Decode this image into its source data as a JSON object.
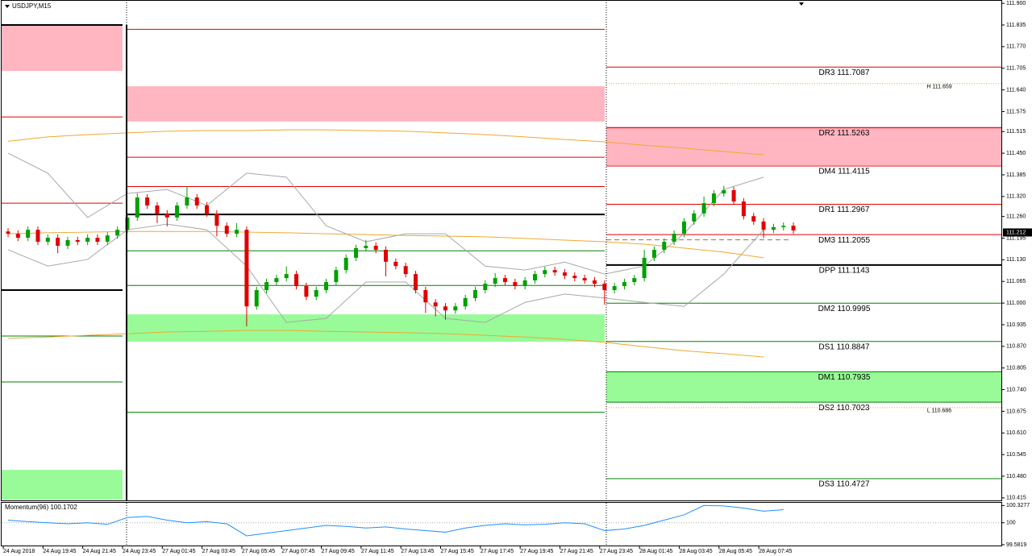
{
  "chart_data": {
    "type": "candlestick",
    "title": "USDJPY,M15",
    "times": [
      "24 Aug 2018",
      "24 Aug 19:45",
      "24 Aug 21:45",
      "24 Aug 23:45",
      "27 Aug 01:45",
      "27 Aug 03:45",
      "27 Aug 05:45",
      "27 Aug 07:45",
      "27 Aug 09:45",
      "27 Aug 11:45",
      "27 Aug 13:45",
      "27 Aug 15:45",
      "27 Aug 17:45",
      "27 Aug 19:45",
      "27 Aug 21:45",
      "27 Aug 23:45",
      "28 Aug 01:45",
      "28 Aug 03:45",
      "28 Aug 05:45",
      "28 Aug 07:45"
    ],
    "up_color": "#00a000",
    "down_color": "#e00000",
    "candles": [
      [
        111.215,
        111.225,
        111.198,
        111.208
      ],
      [
        111.208,
        111.218,
        111.186,
        111.196
      ],
      [
        111.196,
        111.23,
        111.186,
        111.22
      ],
      [
        111.22,
        111.23,
        111.174,
        111.184
      ],
      [
        111.184,
        111.206,
        111.174,
        111.196
      ],
      [
        111.196,
        111.206,
        111.15,
        111.172
      ],
      [
        111.172,
        111.199,
        111.162,
        111.189
      ],
      [
        111.189,
        111.199,
        111.174,
        111.184
      ],
      [
        111.184,
        111.206,
        111.174,
        111.196
      ],
      [
        111.196,
        111.206,
        111.174,
        111.184
      ],
      [
        111.184,
        111.213,
        111.174,
        111.203
      ],
      [
        111.203,
        111.23,
        111.193,
        111.22
      ],
      [
        111.22,
        111.267,
        111.21,
        111.257
      ],
      [
        111.257,
        111.33,
        111.247,
        111.317
      ],
      [
        111.317,
        111.327,
        111.283,
        111.293
      ],
      [
        111.293,
        111.303,
        111.24,
        111.269
      ],
      [
        111.269,
        111.279,
        111.23,
        111.257
      ],
      [
        111.257,
        111.303,
        111.247,
        111.293
      ],
      [
        111.293,
        111.35,
        111.283,
        111.317
      ],
      [
        111.317,
        111.327,
        111.283,
        111.293
      ],
      [
        111.293,
        111.303,
        111.259,
        111.269
      ],
      [
        111.269,
        111.279,
        111.2,
        111.232
      ],
      [
        111.232,
        111.242,
        111.198,
        111.208
      ],
      [
        111.208,
        111.24,
        111.198,
        111.22
      ],
      [
        111.22,
        111.23,
        110.93,
        110.99
      ],
      [
        110.99,
        111.049,
        110.98,
        111.039
      ],
      [
        111.039,
        111.073,
        111.029,
        111.063
      ],
      [
        111.063,
        111.085,
        111.053,
        111.075
      ],
      [
        111.075,
        111.11,
        111.065,
        111.087
      ],
      [
        111.087,
        111.097,
        111.041,
        111.051
      ],
      [
        111.051,
        111.061,
        111.009,
        111.019
      ],
      [
        111.019,
        111.049,
        111.009,
        111.039
      ],
      [
        111.039,
        111.073,
        111.029,
        111.063
      ],
      [
        111.063,
        111.109,
        111.053,
        111.099
      ],
      [
        111.099,
        111.146,
        111.089,
        111.136
      ],
      [
        111.136,
        111.175,
        111.126,
        111.165
      ],
      [
        111.165,
        111.19,
        111.155,
        111.172
      ],
      [
        111.172,
        111.182,
        111.15,
        111.16
      ],
      [
        111.16,
        111.17,
        111.08,
        111.124
      ],
      [
        111.124,
        111.134,
        111.101,
        111.111
      ],
      [
        111.111,
        111.121,
        111.077,
        111.087
      ],
      [
        111.087,
        111.097,
        111.029,
        111.039
      ],
      [
        111.039,
        111.049,
        110.97,
        111.002
      ],
      [
        111.002,
        111.012,
        110.96,
        110.99
      ],
      [
        110.99,
        111.0,
        110.95,
        110.978
      ],
      [
        110.978,
        111.0,
        110.968,
        110.99
      ],
      [
        110.99,
        111.025,
        110.98,
        111.015
      ],
      [
        111.015,
        111.049,
        111.005,
        111.039
      ],
      [
        111.039,
        111.068,
        111.029,
        111.058
      ],
      [
        111.058,
        111.09,
        111.048,
        111.075
      ],
      [
        111.075,
        111.085,
        111.053,
        111.063
      ],
      [
        111.063,
        111.073,
        111.041,
        111.051
      ],
      [
        111.051,
        111.078,
        111.041,
        111.068
      ],
      [
        111.068,
        111.097,
        111.058,
        111.087
      ],
      [
        111.087,
        111.109,
        111.077,
        111.099
      ],
      [
        111.099,
        111.109,
        111.082,
        111.092
      ],
      [
        111.092,
        111.102,
        111.072,
        111.082
      ],
      [
        111.082,
        111.092,
        111.065,
        111.075
      ],
      [
        111.075,
        111.085,
        111.058,
        111.068
      ],
      [
        111.068,
        111.078,
        111.048,
        111.058
      ],
      [
        111.058,
        111.068,
        110.995,
        111.039
      ],
      [
        111.039,
        111.061,
        111.029,
        111.051
      ],
      [
        111.051,
        111.073,
        111.041,
        111.063
      ],
      [
        111.063,
        111.085,
        111.053,
        111.075
      ],
      [
        111.075,
        111.16,
        111.065,
        111.136
      ],
      [
        111.136,
        111.17,
        111.126,
        111.16
      ],
      [
        111.16,
        111.194,
        111.15,
        111.184
      ],
      [
        111.184,
        111.218,
        111.174,
        111.208
      ],
      [
        111.208,
        111.255,
        111.198,
        111.245
      ],
      [
        111.245,
        111.279,
        111.235,
        111.269
      ],
      [
        111.269,
        111.32,
        111.259,
        111.3
      ],
      [
        111.3,
        111.339,
        111.29,
        111.329
      ],
      [
        111.329,
        111.352,
        111.319,
        111.339
      ],
      [
        111.339,
        111.349,
        111.295,
        111.305
      ],
      [
        111.305,
        111.315,
        111.251,
        111.261
      ],
      [
        111.261,
        111.271,
        111.235,
        111.245
      ],
      [
        111.245,
        111.255,
        111.195,
        111.22
      ],
      [
        111.22,
        111.238,
        111.21,
        111.228
      ],
      [
        111.228,
        111.242,
        111.218,
        111.232
      ],
      [
        111.232,
        111.242,
        111.208,
        111.218
      ]
    ],
    "ylim": [
      110.405,
      111.91
    ],
    "yticks": [
      {
        "value": 111.9,
        "label": "111.900"
      },
      111.835,
      {
        "value": 111.77,
        "label": "111.770"
      },
      111.705,
      {
        "value": 111.64,
        "label": "111.640"
      },
      111.575,
      111.515,
      {
        "value": 111.45,
        "label": "111.450"
      },
      111.385,
      {
        "value": 111.32,
        "label": "111.320"
      },
      {
        "value": 111.26,
        "label": "111.260"
      },
      111.195,
      {
        "value": 111.13,
        "label": "111.130"
      },
      111.065,
      {
        "value": 111.0,
        "label": "111.000"
      },
      110.935,
      {
        "value": 110.87,
        "label": "110.870"
      },
      110.805,
      {
        "value": 110.74,
        "label": "110.740"
      },
      110.675,
      {
        "value": 110.61,
        "label": "110.610"
      },
      110.545,
      {
        "value": 110.48,
        "label": "110.480"
      },
      110.415
    ],
    "last_price": 111.212,
    "ma": [
      {
        "color": "#f0a830",
        "values": [
          111.486,
          111.499,
          111.506,
          111.511,
          111.516,
          111.518,
          111.518,
          111.52,
          111.52,
          111.518,
          111.516,
          111.511,
          111.506,
          111.499,
          111.491,
          111.484,
          111.474,
          111.465,
          111.455,
          111.445
        ]
      },
      {
        "color": "#f0a830",
        "values": [
          110.894,
          110.898,
          110.903,
          110.908,
          110.913,
          110.915,
          110.918,
          110.918,
          110.915,
          110.913,
          110.911,
          110.908,
          110.903,
          110.898,
          110.891,
          110.882,
          110.869,
          110.857,
          110.848,
          110.838
        ]
      },
      {
        "color": "#f0a830",
        "values": [
          111.208,
          111.211,
          111.213,
          111.215,
          111.215,
          111.215,
          111.213,
          111.211,
          111.208,
          111.206,
          111.203,
          111.201,
          111.199,
          111.194,
          111.189,
          111.184,
          111.177,
          111.165,
          111.153,
          111.136
        ]
      }
    ],
    "bands": {
      "color": "#a8a8a8",
      "upper": [
        111.45,
        111.39,
        111.257,
        111.329,
        111.341,
        111.293,
        111.39,
        111.378,
        111.232,
        111.184,
        111.208,
        111.208,
        111.111,
        111.099,
        111.123,
        111.087,
        111.111,
        111.208,
        111.341,
        111.378
      ],
      "lower": [
        111.16,
        111.111,
        111.131,
        111.22,
        111.237,
        111.22,
        111.111,
        110.942,
        110.954,
        111.063,
        111.063,
        110.954,
        110.942,
        111.002,
        111.027,
        111.015,
        111.002,
        110.99,
        111.087,
        111.22
      ]
    },
    "sessions": [
      {
        "zones": [
          {
            "from": 111.697,
            "to": 111.835,
            "color": "#ffb6c1"
          },
          {
            "from": 110.41,
            "to": 110.499,
            "color": "#98fb98"
          }
        ],
        "levels": [
          {
            "value": 111.835,
            "color": "#000000"
          },
          {
            "value": 111.559,
            "color": "#e00000"
          },
          {
            "value": 111.3,
            "color": "#e00000"
          },
          {
            "value": 111.039,
            "color": "#000000"
          },
          {
            "value": 110.901,
            "color": "#008000"
          },
          {
            "value": 110.763,
            "color": "#008000"
          }
        ]
      },
      {
        "zones": [
          {
            "from": 111.545,
            "to": 111.651,
            "color": "#ffb6c1"
          },
          {
            "from": 110.884,
            "to": 110.966,
            "color": "#98fb98"
          }
        ],
        "levels": [
          {
            "value": 111.822,
            "color": "#e00000"
          },
          {
            "value": 111.438,
            "color": "#e00000"
          },
          {
            "value": 111.35,
            "color": "#e00000"
          },
          {
            "value": 111.266,
            "color": "#000000"
          },
          {
            "value": 111.157,
            "color": "#008000"
          },
          {
            "value": 111.053,
            "color": "#008000"
          },
          {
            "value": 110.672,
            "color": "#008000"
          }
        ]
      },
      {
        "zones": [
          {
            "from": 111.414,
            "to": 111.53,
            "color": "#ffb6c1"
          },
          {
            "from": 110.703,
            "to": 110.795,
            "color": "#98fb98"
          }
        ],
        "levels": []
      }
    ],
    "pivots": [
      {
        "label": "DR3 111.7087",
        "value": 111.7087,
        "color": "#e00000"
      },
      {
        "label": "DR2 111.5263",
        "value": 111.5263,
        "color": "#e00000"
      },
      {
        "label": "DM4 111.4115",
        "value": 111.4115,
        "color": "#e00000"
      },
      {
        "label": "DR1 111.2967",
        "value": 111.2967,
        "color": "#e00000"
      },
      {
        "label": "DM3 111.2055",
        "value": 111.2055,
        "color": "#e00000"
      },
      {
        "label": "DPP 111.1143",
        "value": 111.1143,
        "color": "#000000"
      },
      {
        "label": "DM2 110.9995",
        "value": 110.9995,
        "color": "#008000"
      },
      {
        "label": "DS1 110.8847",
        "value": 110.8847,
        "color": "#008000"
      },
      {
        "label": "DM1 110.7935",
        "value": 110.7935,
        "color": "#008000"
      },
      {
        "label": "DS2 110.7023",
        "value": 110.7023,
        "color": "#008000"
      },
      {
        "label": "DS3 110.4727",
        "value": 110.4727,
        "color": "#008000"
      }
    ],
    "dashed_level": 111.19,
    "high": {
      "label": "H 111.659",
      "value": 111.659
    },
    "low": {
      "label": "L 110.686",
      "value": 110.686
    },
    "hl_color": "#f0a830",
    "momentum": {
      "label": "Momentum(96) 100.1702",
      "color": "#1e90ff",
      "ylim": [
        99.55,
        100.38
      ],
      "yticks": [
        100.3277,
        100,
        99.5819
      ],
      "values": [
        100.05,
        100.02,
        100.0,
        99.98,
        100.0,
        99.97,
        100.1,
        100.12,
        100.05,
        100.0,
        100.02,
        99.98,
        99.75,
        99.8,
        99.85,
        99.9,
        99.95,
        99.93,
        99.9,
        99.92,
        99.88,
        99.85,
        99.82,
        99.9,
        99.95,
        99.98,
        99.96,
        99.97,
        100.0,
        99.98,
        99.85,
        99.88,
        99.95,
        100.05,
        100.15,
        100.33,
        100.32,
        100.28,
        100.22,
        100.25
      ]
    }
  }
}
